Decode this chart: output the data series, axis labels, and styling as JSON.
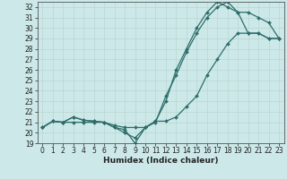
{
  "xlabel": "Humidex (Indice chaleur)",
  "bg_color": "#cce8e8",
  "line_color": "#2e6e6a",
  "xlim": [
    -0.5,
    23.5
  ],
  "ylim": [
    19,
    32.5
  ],
  "xticks": [
    0,
    1,
    2,
    3,
    4,
    5,
    6,
    7,
    8,
    9,
    10,
    11,
    12,
    13,
    14,
    15,
    16,
    17,
    18,
    19,
    20,
    21,
    22,
    23
  ],
  "yticks": [
    19,
    20,
    21,
    22,
    23,
    24,
    25,
    26,
    27,
    28,
    29,
    30,
    31,
    32
  ],
  "line1_x": [
    0,
    1,
    2,
    3,
    4,
    5,
    6,
    7,
    8,
    9,
    10,
    11,
    12,
    13,
    14,
    15,
    16,
    17,
    18,
    19,
    20,
    21,
    22,
    23
  ],
  "line1_y": [
    20.5,
    21.1,
    21.0,
    21.0,
    21.0,
    21.0,
    21.0,
    20.5,
    20.0,
    19.5,
    20.5,
    21.0,
    23.5,
    25.5,
    27.7,
    29.5,
    31.0,
    32.0,
    32.5,
    31.5,
    31.5,
    31.0,
    30.5,
    29.0
  ],
  "line2_x": [
    0,
    1,
    2,
    3,
    4,
    5,
    6,
    7,
    8,
    9,
    10,
    11,
    12,
    13,
    14,
    15,
    16,
    17,
    18,
    19,
    20,
    21,
    22,
    23
  ],
  "line2_y": [
    20.5,
    21.1,
    21.0,
    21.5,
    21.2,
    21.1,
    21.0,
    20.5,
    20.3,
    19.0,
    20.5,
    21.1,
    23.0,
    26.0,
    28.0,
    30.0,
    31.5,
    32.5,
    32.0,
    31.5,
    29.5,
    29.5,
    29.0,
    29.0
  ],
  "line3_x": [
    0,
    1,
    2,
    3,
    4,
    5,
    6,
    7,
    8,
    9,
    10,
    11,
    12,
    13,
    14,
    15,
    16,
    17,
    18,
    19,
    20,
    21,
    22,
    23
  ],
  "line3_y": [
    20.5,
    21.1,
    21.0,
    21.5,
    21.2,
    21.1,
    21.0,
    20.7,
    20.5,
    20.5,
    20.5,
    21.1,
    21.1,
    21.5,
    22.5,
    23.5,
    25.5,
    27.0,
    28.5,
    29.5,
    29.5,
    29.5,
    29.0,
    29.0
  ],
  "grid_color": "#b8d8d0",
  "marker": "D",
  "markersize": 2.0,
  "linewidth": 0.9,
  "tick_fontsize": 5.5,
  "xlabel_fontsize": 6.5
}
